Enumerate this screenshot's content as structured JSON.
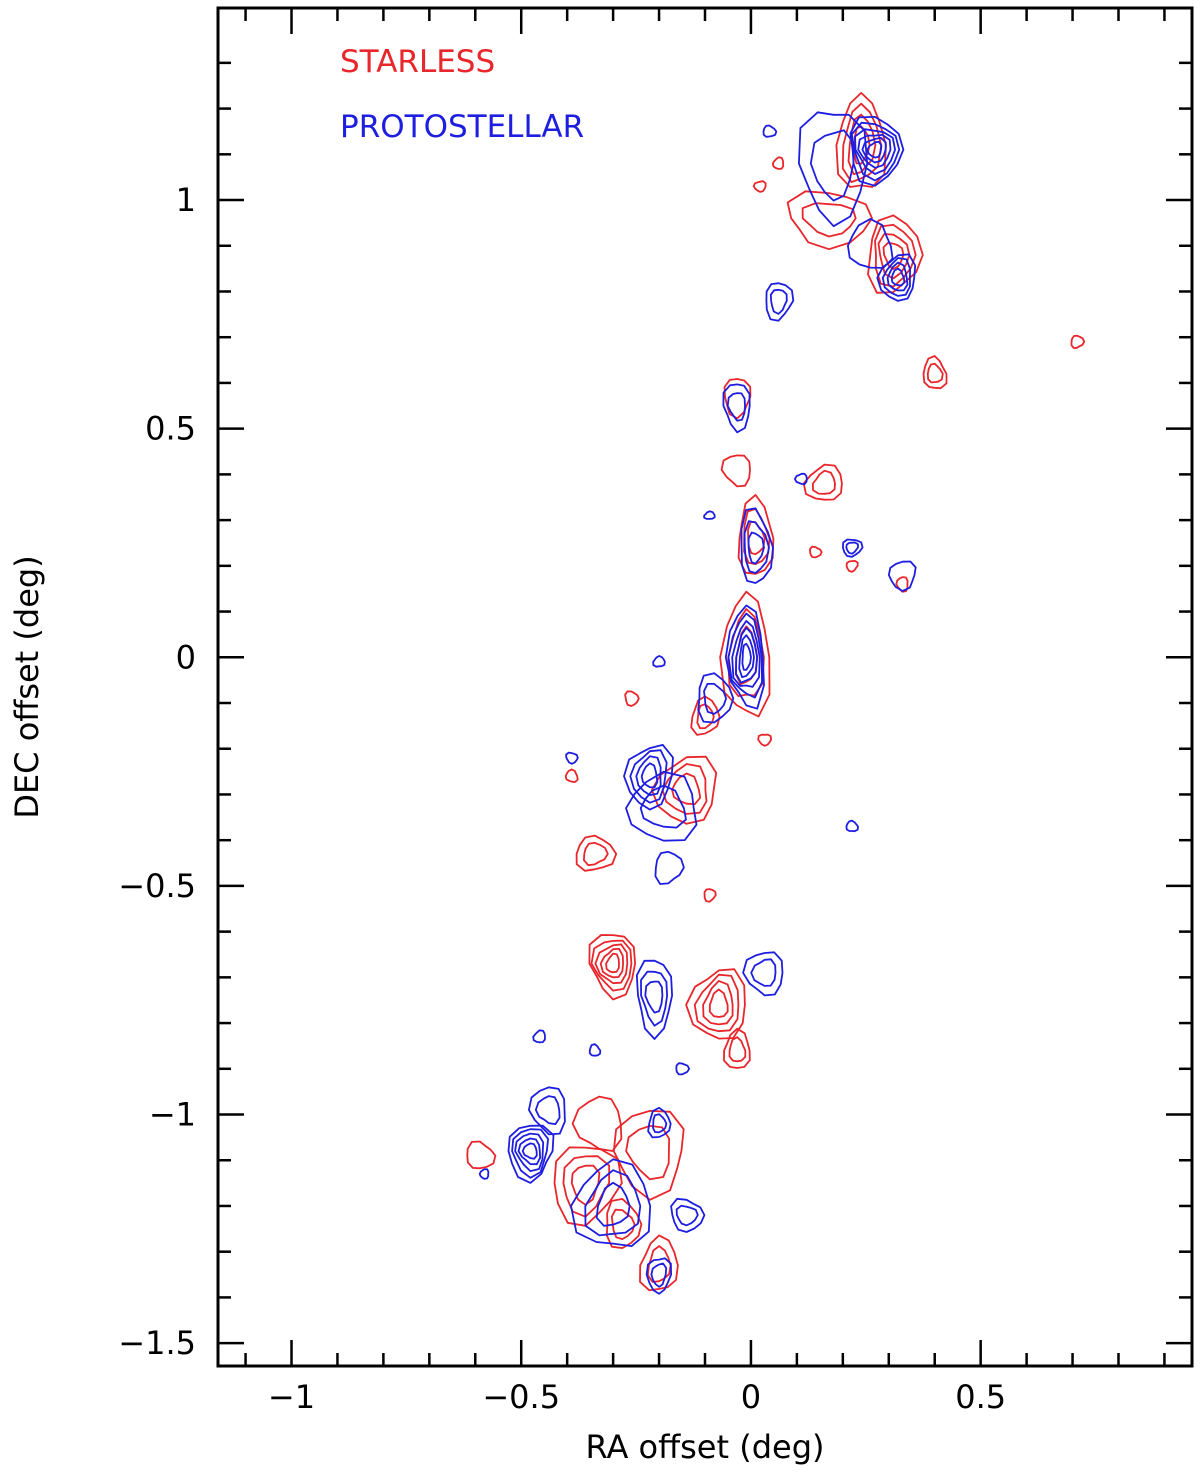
{
  "chart_data": {
    "type": "contour",
    "xlabel": "RA offset (deg)",
    "ylabel": "DEC offset (deg)",
    "xlim": [
      -1.16,
      0.96
    ],
    "ylim": [
      -1.55,
      1.42
    ],
    "x_ticks": [
      -1,
      -0.5,
      0,
      0.5
    ],
    "x_tick_labels": [
      "−1",
      "−0.5",
      "0",
      "0.5"
    ],
    "y_ticks": [
      -1.5,
      -1,
      -0.5,
      0,
      0.5,
      1
    ],
    "y_tick_labels": [
      "−1.5",
      "−1",
      "−0.5",
      "0",
      "0.5",
      "1"
    ],
    "legend_position": "top-left",
    "series": [
      {
        "name": "STARLESS",
        "color": "#e8262b",
        "clumps": [
          {
            "x": 0.24,
            "y": 1.12,
            "rx": 0.05,
            "ry": 0.11,
            "levels": 4
          },
          {
            "x": 0.31,
            "y": 0.88,
            "rx": 0.06,
            "ry": 0.08,
            "levels": 4
          },
          {
            "x": 0.17,
            "y": 0.96,
            "rx": 0.09,
            "ry": 0.06,
            "levels": 2
          },
          {
            "x": 0.02,
            "y": 1.03,
            "rx": 0.012,
            "ry": 0.012,
            "levels": 1
          },
          {
            "x": 0.06,
            "y": 1.08,
            "rx": 0.012,
            "ry": 0.012,
            "levels": 1
          },
          {
            "x": 0.4,
            "y": 0.62,
            "rx": 0.025,
            "ry": 0.035,
            "levels": 2
          },
          {
            "x": 0.71,
            "y": 0.69,
            "rx": 0.013,
            "ry": 0.014,
            "levels": 1
          },
          {
            "x": -0.03,
            "y": 0.57,
            "rx": 0.03,
            "ry": 0.04,
            "levels": 1
          },
          {
            "x": -0.03,
            "y": 0.41,
            "rx": 0.03,
            "ry": 0.035,
            "levels": 1
          },
          {
            "x": 0.16,
            "y": 0.38,
            "rx": 0.04,
            "ry": 0.04,
            "levels": 2
          },
          {
            "x": 0.01,
            "y": 0.26,
            "rx": 0.04,
            "ry": 0.08,
            "levels": 3
          },
          {
            "x": 0.14,
            "y": 0.23,
            "rx": 0.012,
            "ry": 0.012,
            "levels": 1
          },
          {
            "x": 0.22,
            "y": 0.2,
            "rx": 0.012,
            "ry": 0.012,
            "levels": 1
          },
          {
            "x": 0.33,
            "y": 0.16,
            "rx": 0.013,
            "ry": 0.015,
            "levels": 1
          },
          {
            "x": -0.01,
            "y": 0.0,
            "rx": 0.05,
            "ry": 0.14,
            "levels": 3
          },
          {
            "x": -0.1,
            "y": -0.13,
            "rx": 0.03,
            "ry": 0.04,
            "levels": 2
          },
          {
            "x": -0.26,
            "y": -0.09,
            "rx": 0.015,
            "ry": 0.015,
            "levels": 1
          },
          {
            "x": 0.03,
            "y": -0.18,
            "rx": 0.013,
            "ry": 0.013,
            "levels": 1
          },
          {
            "x": -0.14,
            "y": -0.29,
            "rx": 0.07,
            "ry": 0.07,
            "levels": 3
          },
          {
            "x": -0.39,
            "y": -0.26,
            "rx": 0.013,
            "ry": 0.013,
            "levels": 1
          },
          {
            "x": -0.34,
            "y": -0.43,
            "rx": 0.04,
            "ry": 0.04,
            "levels": 2
          },
          {
            "x": -0.09,
            "y": -0.52,
            "rx": 0.013,
            "ry": 0.013,
            "levels": 1
          },
          {
            "x": -0.3,
            "y": -0.67,
            "rx": 0.05,
            "ry": 0.07,
            "levels": 5
          },
          {
            "x": -0.07,
            "y": -0.76,
            "rx": 0.06,
            "ry": 0.08,
            "levels": 4
          },
          {
            "x": -0.03,
            "y": -0.86,
            "rx": 0.03,
            "ry": 0.04,
            "levels": 2
          },
          {
            "x": -0.59,
            "y": -1.09,
            "rx": 0.03,
            "ry": 0.03,
            "levels": 1
          },
          {
            "x": -0.36,
            "y": -1.15,
            "rx": 0.07,
            "ry": 0.09,
            "levels": 3
          },
          {
            "x": -0.22,
            "y": -1.08,
            "rx": 0.08,
            "ry": 0.09,
            "levels": 2
          },
          {
            "x": -0.33,
            "y": -1.02,
            "rx": 0.05,
            "ry": 0.06,
            "levels": 1
          },
          {
            "x": -0.2,
            "y": -1.33,
            "rx": 0.04,
            "ry": 0.06,
            "levels": 2
          },
          {
            "x": -0.28,
            "y": -1.24,
            "rx": 0.04,
            "ry": 0.05,
            "levels": 2
          }
        ]
      },
      {
        "name": "PROTOSTELLAR",
        "color": "#1e1ee0",
        "clumps": [
          {
            "x": 0.27,
            "y": 1.11,
            "rx": 0.06,
            "ry": 0.07,
            "levels": 6
          },
          {
            "x": 0.18,
            "y": 1.08,
            "rx": 0.07,
            "ry": 0.13,
            "levels": 2
          },
          {
            "x": 0.32,
            "y": 0.83,
            "rx": 0.04,
            "ry": 0.05,
            "levels": 4
          },
          {
            "x": 0.26,
            "y": 0.9,
            "rx": 0.05,
            "ry": 0.05,
            "levels": 1
          },
          {
            "x": 0.04,
            "y": 1.15,
            "rx": 0.013,
            "ry": 0.013,
            "levels": 1
          },
          {
            "x": 0.06,
            "y": 0.78,
            "rx": 0.03,
            "ry": 0.04,
            "levels": 2
          },
          {
            "x": -0.03,
            "y": 0.55,
            "rx": 0.03,
            "ry": 0.05,
            "levels": 2
          },
          {
            "x": 0.11,
            "y": 0.39,
            "rx": 0.012,
            "ry": 0.012,
            "levels": 1
          },
          {
            "x": -0.09,
            "y": 0.31,
            "rx": 0.012,
            "ry": 0.008,
            "levels": 1
          },
          {
            "x": 0.01,
            "y": 0.24,
            "rx": 0.035,
            "ry": 0.08,
            "levels": 3
          },
          {
            "x": 0.22,
            "y": 0.24,
            "rx": 0.02,
            "ry": 0.02,
            "levels": 2
          },
          {
            "x": 0.33,
            "y": 0.18,
            "rx": 0.03,
            "ry": 0.03,
            "levels": 1
          },
          {
            "x": -0.01,
            "y": 0.0,
            "rx": 0.04,
            "ry": 0.11,
            "levels": 6
          },
          {
            "x": -0.2,
            "y": -0.01,
            "rx": 0.012,
            "ry": 0.012,
            "levels": 1
          },
          {
            "x": -0.08,
            "y": -0.09,
            "rx": 0.04,
            "ry": 0.05,
            "levels": 2
          },
          {
            "x": -0.39,
            "y": -0.22,
            "rx": 0.012,
            "ry": 0.012,
            "levels": 1
          },
          {
            "x": -0.22,
            "y": -0.26,
            "rx": 0.05,
            "ry": 0.07,
            "levels": 4
          },
          {
            "x": -0.19,
            "y": -0.33,
            "rx": 0.08,
            "ry": 0.07,
            "levels": 2
          },
          {
            "x": 0.22,
            "y": -0.37,
            "rx": 0.012,
            "ry": 0.012,
            "levels": 1
          },
          {
            "x": -0.18,
            "y": -0.46,
            "rx": 0.03,
            "ry": 0.035,
            "levels": 1
          },
          {
            "x": -0.21,
            "y": -0.74,
            "rx": 0.04,
            "ry": 0.08,
            "levels": 3
          },
          {
            "x": 0.03,
            "y": -0.69,
            "rx": 0.04,
            "ry": 0.05,
            "levels": 2
          },
          {
            "x": -0.46,
            "y": -0.83,
            "rx": 0.013,
            "ry": 0.013,
            "levels": 1
          },
          {
            "x": -0.34,
            "y": -0.86,
            "rx": 0.012,
            "ry": 0.012,
            "levels": 1
          },
          {
            "x": -0.15,
            "y": -0.9,
            "rx": 0.013,
            "ry": 0.013,
            "levels": 1
          },
          {
            "x": -0.48,
            "y": -1.08,
            "rx": 0.05,
            "ry": 0.06,
            "levels": 5
          },
          {
            "x": -0.44,
            "y": -0.99,
            "rx": 0.04,
            "ry": 0.05,
            "levels": 2
          },
          {
            "x": -0.3,
            "y": -1.2,
            "rx": 0.08,
            "ry": 0.1,
            "levels": 3
          },
          {
            "x": -0.2,
            "y": -1.02,
            "rx": 0.025,
            "ry": 0.03,
            "levels": 2
          },
          {
            "x": -0.14,
            "y": -1.22,
            "rx": 0.035,
            "ry": 0.035,
            "levels": 2
          },
          {
            "x": -0.2,
            "y": -1.35,
            "rx": 0.025,
            "ry": 0.04,
            "levels": 2
          },
          {
            "x": -0.58,
            "y": -1.13,
            "rx": 0.01,
            "ry": 0.01,
            "levels": 1
          }
        ]
      }
    ]
  }
}
